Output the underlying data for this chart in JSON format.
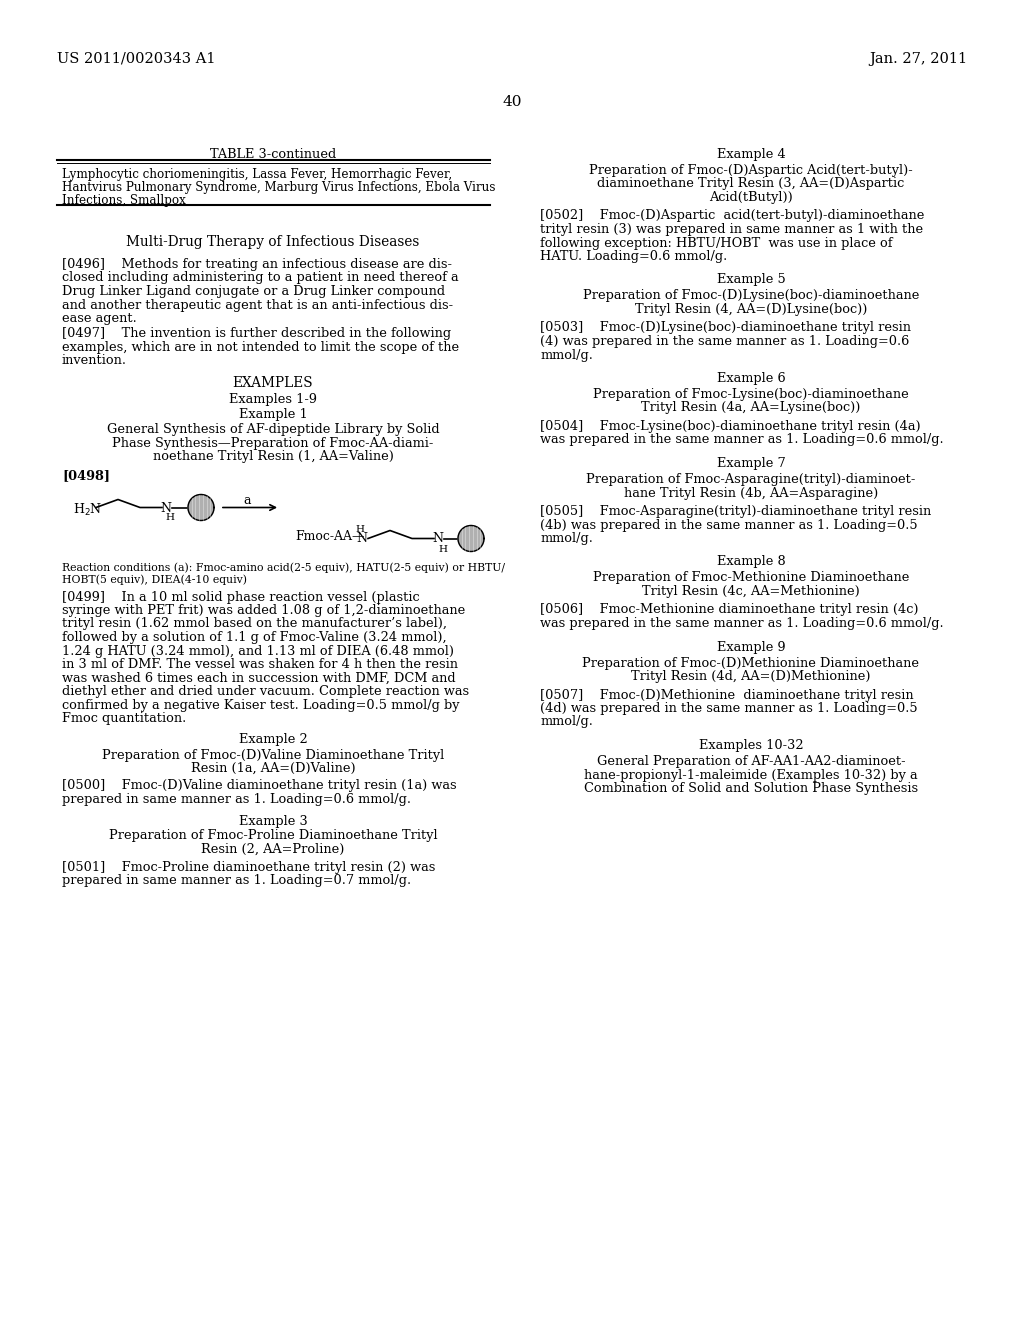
{
  "page_number": "40",
  "header_left": "US 2011/0020343 A1",
  "header_right": "Jan. 27, 2011",
  "table_title": "TABLE 3-continued",
  "table_content_line1": "Lymphocytic choriomeningitis, Lassa Fever, Hemorrhagic Fever,",
  "table_content_line2": "Hantvirus Pulmonary Syndrome, Marburg Virus Infections, Ebola Virus",
  "table_content_line3": "Infections, Smallpox",
  "section_title": "Multi-Drug Therapy of Infectious Diseases",
  "para_0496_lines": [
    "[0496]    Methods for treating an infectious disease are dis-",
    "closed including administering to a patient in need thereof a",
    "Drug Linker Ligand conjugate or a Drug Linker compound",
    "and another therapeutic agent that is an anti-infectious dis-",
    "ease agent."
  ],
  "para_0497_lines": [
    "[0497]    The invention is further described in the following",
    "examples, which are in not intended to limit the scope of the",
    "invention."
  ],
  "examples_heading": "EXAMPLES",
  "examples_1_9": "Examples 1-9",
  "example_1_heading": "Example 1",
  "example_1_title_lines": [
    "General Synthesis of AF-dipeptide Library by Solid",
    "Phase Synthesis—Preparation of Fmoc-AA-diami-",
    "noethane Trityl Resin (1, AA=Valine)"
  ],
  "para_0498": "[0498]",
  "reaction_cond_line1": "Reaction conditions (a): Fmoc-amino acid(2-5 equiv), HATU(2-5 equiv) or HBTU/",
  "reaction_cond_line2": "HOBT(5 equiv), DIEA(4-10 equiv)",
  "para_0499_lines": [
    "[0499]    In a 10 ml solid phase reaction vessel (plastic",
    "syringe with PET frit) was added 1.08 g of 1,2-diaminoethane",
    "trityl resin (1.62 mmol based on the manufacturer’s label),",
    "followed by a solution of 1.1 g of Fmoc-Valine (3.24 mmol),",
    "1.24 g HATU (3.24 mmol), and 1.13 ml of DIEA (6.48 mmol)",
    "in 3 ml of DMF. The vessel was shaken for 4 h then the resin",
    "was washed 6 times each in succession with DMF, DCM and",
    "diethyl ether and dried under vacuum. Complete reaction was",
    "confirmed by a negative Kaiser test. Loading=0.5 mmol/g by",
    "Fmoc quantitation."
  ],
  "example_2_heading": "Example 2",
  "example_2_title_lines": [
    "Preparation of Fmoc-(D)Valine Diaminoethane Trityl",
    "Resin (1a, AA=(D)Valine)"
  ],
  "para_0500_lines": [
    "[0500]    Fmoc-(D)Valine diaminoethane trityl resin (1a) was",
    "prepared in same manner as 1. Loading=0.6 mmol/g."
  ],
  "example_3_heading": "Example 3",
  "example_3_title_lines": [
    "Preparation of Fmoc-Proline Diaminoethane Trityl",
    "Resin (2, AA=Proline)"
  ],
  "para_0501_lines": [
    "[0501]    Fmoc-Proline diaminoethane trityl resin (2) was",
    "prepared in same manner as 1. Loading=0.7 mmol/g."
  ],
  "r_example_4_heading": "Example 4",
  "r_example_4_title_lines": [
    "Preparation of Fmoc-(D)Aspartic Acid(tert-butyl)-",
    "diaminoethane Trityl Resin (3, AA=(D)Aspartic",
    "Acid(tButyl))"
  ],
  "para_0502_lines": [
    "[0502]    Fmoc-(D)Aspartic  acid(tert-butyl)-diaminoethane",
    "trityl resin (3) was prepared in same manner as 1 with the",
    "following exception: HBTU/HOBT  was use in place of",
    "HATU. Loading=0.6 mmol/g."
  ],
  "r_example_5_heading": "Example 5",
  "r_example_5_title_lines": [
    "Preparation of Fmoc-(D)Lysine(boc)-diaminoethane",
    "Trityl Resin (4, AA=(D)Lysine(boc))"
  ],
  "para_0503_lines": [
    "[0503]    Fmoc-(D)Lysine(boc)-diaminoethane trityl resin",
    "(4) was prepared in the same manner as 1. Loading=0.6",
    "mmol/g."
  ],
  "r_example_6_heading": "Example 6",
  "r_example_6_title_lines": [
    "Preparation of Fmoc-Lysine(boc)-diaminoethane",
    "Trityl Resin (4a, AA=Lysine(boc))"
  ],
  "para_0504_lines": [
    "[0504]    Fmoc-Lysine(boc)-diaminoethane trityl resin (4a)",
    "was prepared in the same manner as 1. Loading=0.6 mmol/g."
  ],
  "r_example_7_heading": "Example 7",
  "r_example_7_title_lines": [
    "Preparation of Fmoc-Asparagine(trityl)-diaminoet-",
    "hane Trityl Resin (4b, AA=Asparagine)"
  ],
  "para_0505_lines": [
    "[0505]    Fmoc-Asparagine(trityl)-diaminoethane trityl resin",
    "(4b) was prepared in the same manner as 1. Loading=0.5",
    "mmol/g."
  ],
  "r_example_8_heading": "Example 8",
  "r_example_8_title_lines": [
    "Preparation of Fmoc-Methionine Diaminoethane",
    "Trityl Resin (4c, AA=Methionine)"
  ],
  "para_0506_lines": [
    "[0506]    Fmoc-Methionine diaminoethane trityl resin (4c)",
    "was prepared in the same manner as 1. Loading=0.6 mmol/g."
  ],
  "r_example_9_heading": "Example 9",
  "r_example_9_title_lines": [
    "Preparation of Fmoc-(D)Methionine Diaminoethane",
    "Trityl Resin (4d, AA=(D)Methionine)"
  ],
  "para_0507_lines": [
    "[0507]    Fmoc-(D)Methionine  diaminoethane trityl resin",
    "(4d) was prepared in the same manner as 1. Loading=0.5",
    "mmol/g."
  ],
  "r_examples_10_32_heading": "Examples 10-32",
  "r_examples_10_32_title_lines": [
    "General Preparation of AF-AA1-AA2-diaminoet-",
    "hane-propionyl-1-maleimide (Examples 10-32) by a",
    "Combination of Solid and Solution Phase Synthesis"
  ]
}
